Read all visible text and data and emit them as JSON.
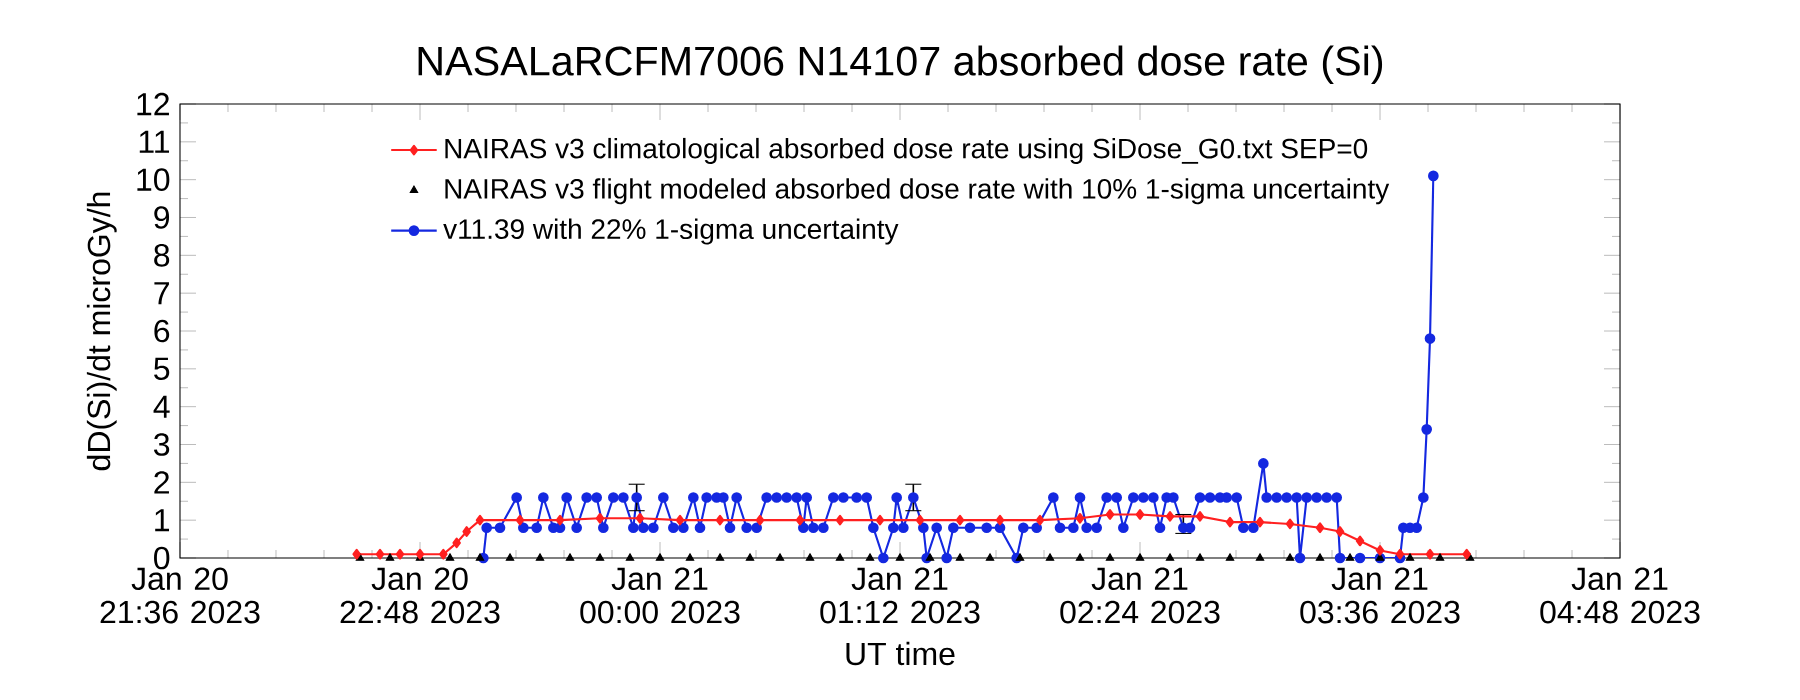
{
  "chart_data": {
    "type": "line",
    "title": "NASALaRCFM7006  N14107 absorbed dose rate (Si)",
    "xlabel": "UT time",
    "ylabel": "dD(Si)/dt microGy/h",
    "xlim": [
      "2023-01-20T21:36",
      "2023-01-21T04:48"
    ],
    "xticks": [
      {
        "value": "2023-01-20T21:36",
        "label": "Jan 20 21:36 2023"
      },
      {
        "value": "2023-01-20T22:48",
        "label": "Jan 20 22:48 2023"
      },
      {
        "value": "2023-01-21T00:00",
        "label": "Jan 21 00:00 2023"
      },
      {
        "value": "2023-01-21T01:12",
        "label": "Jan 21 01:12 2023"
      },
      {
        "value": "2023-01-21T02:24",
        "label": "Jan 21 02:24 2023"
      },
      {
        "value": "2023-01-21T03:36",
        "label": "Jan 21 03:36 2023"
      },
      {
        "value": "2023-01-21T04:48",
        "label": "Jan 21 04:48 2023"
      }
    ],
    "ylim": [
      0,
      12
    ],
    "yticks": [
      0,
      1,
      2,
      3,
      4,
      5,
      6,
      7,
      8,
      9,
      10,
      11,
      12
    ],
    "legend": "top",
    "series": [
      {
        "name": "NAIRAS v3 climatological absorbed dose rate using SiDose_G0.txt SEP=0",
        "color": "#ff2020",
        "marker": "diamond",
        "x": [
          "2023-01-20T22:29",
          "2023-01-20T22:36",
          "2023-01-20T22:42",
          "2023-01-20T22:48",
          "2023-01-20T22:55",
          "2023-01-20T22:59",
          "2023-01-20T23:02",
          "2023-01-20T23:06",
          "2023-01-20T23:18",
          "2023-01-20T23:30",
          "2023-01-20T23:42",
          "2023-01-20T23:54",
          "2023-01-21T00:06",
          "2023-01-21T00:18",
          "2023-01-21T00:30",
          "2023-01-21T00:42",
          "2023-01-21T00:54",
          "2023-01-21T01:06",
          "2023-01-21T01:18",
          "2023-01-21T01:30",
          "2023-01-21T01:42",
          "2023-01-21T01:54",
          "2023-01-21T02:06",
          "2023-01-21T02:15",
          "2023-01-21T02:24",
          "2023-01-21T02:33",
          "2023-01-21T02:42",
          "2023-01-21T02:51",
          "2023-01-21T03:00",
          "2023-01-21T03:09",
          "2023-01-21T03:18",
          "2023-01-21T03:24",
          "2023-01-21T03:30",
          "2023-01-21T03:36",
          "2023-01-21T03:42",
          "2023-01-21T03:51",
          "2023-01-21T04:02"
        ],
        "values": [
          0.1,
          0.1,
          0.1,
          0.1,
          0.1,
          0.4,
          0.7,
          1.0,
          1.0,
          1.0,
          1.05,
          1.05,
          1.0,
          1.0,
          1.0,
          1.0,
          1.0,
          1.0,
          1.0,
          1.0,
          1.0,
          1.0,
          1.05,
          1.15,
          1.15,
          1.1,
          1.1,
          0.95,
          0.95,
          0.9,
          0.8,
          0.7,
          0.45,
          0.2,
          0.1,
          0.1,
          0.1
        ]
      },
      {
        "name": "NAIRAS v3 flight modeled absorbed dose rate with 10% 1-sigma uncertainty",
        "color": "#000000",
        "type": "scatter",
        "marker": "triangle",
        "x": [
          "2023-01-20T22:30",
          "2023-01-20T22:39",
          "2023-01-20T22:48",
          "2023-01-20T22:57",
          "2023-01-20T23:06",
          "2023-01-20T23:15",
          "2023-01-20T23:24",
          "2023-01-20T23:33",
          "2023-01-20T23:42",
          "2023-01-20T23:51",
          "2023-01-21T00:00",
          "2023-01-21T00:09",
          "2023-01-21T00:18",
          "2023-01-21T00:27",
          "2023-01-21T00:36",
          "2023-01-21T00:45",
          "2023-01-21T00:54",
          "2023-01-21T01:03",
          "2023-01-21T01:12",
          "2023-01-21T01:21",
          "2023-01-21T01:30",
          "2023-01-21T01:39",
          "2023-01-21T01:48",
          "2023-01-21T01:57",
          "2023-01-21T02:06",
          "2023-01-21T02:15",
          "2023-01-21T02:24",
          "2023-01-21T02:33",
          "2023-01-21T02:42",
          "2023-01-21T02:51",
          "2023-01-21T03:00",
          "2023-01-21T03:09",
          "2023-01-21T03:18",
          "2023-01-21T03:27",
          "2023-01-21T03:36",
          "2023-01-21T03:45",
          "2023-01-21T03:54",
          "2023-01-21T04:03"
        ],
        "values": [
          0,
          0,
          0,
          0,
          0,
          0,
          0,
          0,
          0,
          0,
          0,
          0,
          0,
          0,
          0,
          0,
          0,
          0,
          0,
          0,
          0,
          0,
          0,
          0,
          0,
          0,
          0,
          0,
          0,
          0,
          0,
          0,
          0,
          0,
          0,
          0,
          0,
          0
        ]
      },
      {
        "name": "v11.39 with 22% 1-sigma uncertainty",
        "color": "#1428e0",
        "marker": "circle",
        "x": [
          "2023-01-20T23:07",
          "2023-01-20T23:08",
          "2023-01-20T23:12",
          "2023-01-20T23:17",
          "2023-01-20T23:19",
          "2023-01-20T23:23",
          "2023-01-20T23:25",
          "2023-01-20T23:28",
          "2023-01-20T23:30",
          "2023-01-20T23:32",
          "2023-01-20T23:35",
          "2023-01-20T23:38",
          "2023-01-20T23:41",
          "2023-01-20T23:43",
          "2023-01-20T23:46",
          "2023-01-20T23:49",
          "2023-01-20T23:52",
          "2023-01-20T23:53",
          "2023-01-20T23:55",
          "2023-01-20T23:58",
          "2023-01-21T00:01",
          "2023-01-21T00:04",
          "2023-01-21T00:07",
          "2023-01-21T00:10",
          "2023-01-21T00:12",
          "2023-01-21T00:14",
          "2023-01-21T00:17",
          "2023-01-21T00:19",
          "2023-01-21T00:21",
          "2023-01-21T00:23",
          "2023-01-21T00:26",
          "2023-01-21T00:29",
          "2023-01-21T00:32",
          "2023-01-21T00:35",
          "2023-01-21T00:38",
          "2023-01-21T00:41",
          "2023-01-21T00:43",
          "2023-01-21T00:44",
          "2023-01-21T00:46",
          "2023-01-21T00:49",
          "2023-01-21T00:52",
          "2023-01-21T00:55",
          "2023-01-21T00:59",
          "2023-01-21T01:02",
          "2023-01-21T01:04",
          "2023-01-21T01:07",
          "2023-01-21T01:10",
          "2023-01-21T01:11",
          "2023-01-21T01:13",
          "2023-01-21T01:16",
          "2023-01-21T01:19",
          "2023-01-21T01:20",
          "2023-01-21T01:23",
          "2023-01-21T01:26",
          "2023-01-21T01:28",
          "2023-01-21T01:33",
          "2023-01-21T01:38",
          "2023-01-21T01:42",
          "2023-01-21T01:47",
          "2023-01-21T01:49",
          "2023-01-21T01:53",
          "2023-01-21T01:58",
          "2023-01-21T02:00",
          "2023-01-21T02:04",
          "2023-01-21T02:06",
          "2023-01-21T02:08",
          "2023-01-21T02:11",
          "2023-01-21T02:14",
          "2023-01-21T02:17",
          "2023-01-21T02:19",
          "2023-01-21T02:22",
          "2023-01-21T02:25",
          "2023-01-21T02:28",
          "2023-01-21T02:30",
          "2023-01-21T02:32",
          "2023-01-21T02:34",
          "2023-01-21T02:37",
          "2023-01-21T02:39",
          "2023-01-21T02:42",
          "2023-01-21T02:45",
          "2023-01-21T02:48",
          "2023-01-21T02:50",
          "2023-01-21T02:53",
          "2023-01-21T02:55",
          "2023-01-21T02:58",
          "2023-01-21T03:01",
          "2023-01-21T03:02",
          "2023-01-21T03:05",
          "2023-01-21T03:08",
          "2023-01-21T03:11",
          "2023-01-21T03:12",
          "2023-01-21T03:14",
          "2023-01-21T03:17",
          "2023-01-21T03:20",
          "2023-01-21T03:23",
          "2023-01-21T03:24",
          "2023-01-21T03:30",
          "2023-01-21T03:36",
          "2023-01-21T03:42",
          "2023-01-21T03:43",
          "2023-01-21T03:45",
          "2023-01-21T03:47",
          "2023-01-21T03:49",
          "2023-01-21T03:50",
          "2023-01-21T03:51",
          "2023-01-21T03:52"
        ],
        "values": [
          0,
          0.8,
          0.8,
          1.6,
          0.8,
          0.8,
          1.6,
          0.8,
          0.8,
          1.6,
          0.8,
          1.6,
          1.6,
          0.8,
          1.6,
          1.6,
          0.8,
          1.6,
          0.8,
          0.8,
          1.6,
          0.8,
          0.8,
          1.6,
          0.8,
          1.6,
          1.6,
          1.6,
          0.8,
          1.6,
          0.8,
          0.8,
          1.6,
          1.6,
          1.6,
          1.6,
          0.8,
          1.6,
          0.8,
          0.8,
          1.6,
          1.6,
          1.6,
          1.6,
          0.8,
          0,
          0.8,
          1.6,
          0.8,
          1.6,
          0.8,
          0,
          0.8,
          0,
          0.8,
          0.8,
          0.8,
          0.8,
          0,
          0.8,
          0.8,
          1.6,
          0.8,
          0.8,
          1.6,
          0.8,
          0.8,
          1.6,
          1.6,
          0.8,
          1.6,
          1.6,
          1.6,
          0.8,
          1.6,
          1.6,
          0.8,
          0.8,
          1.6,
          1.6,
          1.6,
          1.6,
          1.6,
          0.8,
          0.8,
          2.5,
          1.6,
          1.6,
          1.6,
          1.6,
          0,
          1.6,
          1.6,
          1.6,
          1.6,
          0,
          0,
          0,
          0,
          0.8,
          0.8,
          0.8,
          1.6,
          3.4,
          5.8,
          10.1
        ],
        "errors": [
          null,
          null,
          null,
          null,
          null,
          null,
          null,
          null,
          null,
          null,
          null,
          null,
          null,
          null,
          null,
          null,
          null,
          0.35,
          null,
          null,
          null,
          null,
          null,
          null,
          null,
          null,
          null,
          null,
          null,
          null,
          null,
          null,
          null,
          null,
          null,
          null,
          null,
          null,
          null,
          null,
          null,
          null,
          null,
          null,
          null,
          null,
          null,
          null,
          null,
          0.35,
          null,
          null,
          null,
          null,
          null,
          null,
          null,
          null,
          null,
          null,
          null,
          null,
          null,
          null,
          null,
          null,
          null,
          null,
          null,
          null,
          null,
          null,
          null,
          null,
          null,
          null,
          [
            0.65,
            1.15
          ],
          null,
          null,
          null,
          null,
          null,
          null,
          null,
          null,
          null,
          null,
          null,
          null,
          null,
          null,
          null,
          null,
          null,
          null,
          null,
          null,
          null,
          null,
          null,
          null,
          null,
          null,
          null,
          null,
          null
        ]
      }
    ]
  }
}
